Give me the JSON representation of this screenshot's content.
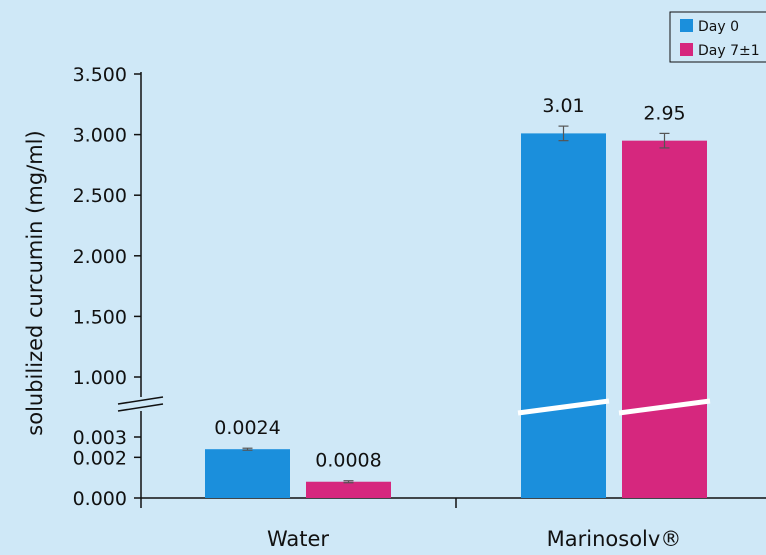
{
  "chart_data": {
    "type": "bar",
    "ylabel": "solubilized curcumin (mg/ml)",
    "categories": [
      "Water",
      "Marinosolv®"
    ],
    "series": [
      {
        "name": "Day 0",
        "color": "#1b8fdc",
        "values": [
          0.0024,
          3.01
        ],
        "labels": [
          "0.0024",
          "3.01"
        ],
        "error": [
          3e-05,
          0.06
        ]
      },
      {
        "name": "Day 7±1",
        "color": "#d6277e",
        "values": [
          0.0008,
          2.95
        ],
        "labels": [
          "0.0008",
          "2.95"
        ],
        "error": [
          3e-05,
          0.06
        ]
      }
    ],
    "y_axis_break": true,
    "lower_segment": {
      "ylim": [
        0.0,
        0.003
      ],
      "ticks": [
        "0.000",
        "0.002",
        "0.003"
      ],
      "tick_values": [
        0.0,
        0.002,
        0.003
      ]
    },
    "upper_segment": {
      "ylim": [
        0.8,
        3.5
      ],
      "ticks": [
        "1.000",
        "1.500",
        "2.000",
        "2.500",
        "3.000",
        "3.500"
      ],
      "tick_values": [
        1.0,
        1.5,
        2.0,
        2.5,
        3.0,
        3.5
      ]
    },
    "legend_position": "top-right",
    "grid": false
  }
}
